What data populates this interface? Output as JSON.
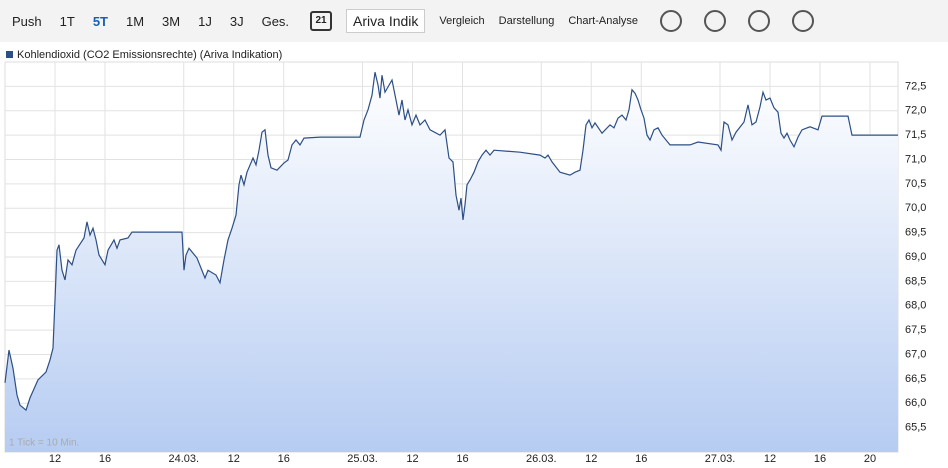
{
  "toolbar": {
    "ranges": [
      "Push",
      "1T",
      "5T",
      "1M",
      "3M",
      "1J",
      "3J",
      "Ges."
    ],
    "active": "5T",
    "calendar": "21",
    "source": "Ariva Indik",
    "menus": [
      "Vergleich",
      "Darstellung",
      "Chart-Analyse"
    ]
  },
  "chart_data": {
    "type": "line",
    "note": "1 Tick = 10 Min.",
    "x": [
      0,
      0.32,
      0.64,
      0.96,
      1.2,
      1.68,
      2.0,
      2.64,
      3.28,
      3.6,
      3.84,
      4.0,
      4.16,
      4.32,
      4.56,
      4.8,
      5.04,
      5.36,
      5.68,
      6.32,
      6.56,
      6.8,
      7.04,
      7.28,
      7.52,
      8.0,
      8.24,
      8.72,
      8.96,
      9.2,
      9.84,
      10.16,
      14.16,
      14.32,
      14.48,
      14.72,
      15.36,
      16.0,
      16.24,
      16.88,
      17.2,
      17.52,
      17.84,
      18.16,
      18.48,
      18.72,
      18.88,
      19.12,
      19.36,
      19.84,
      20.08,
      20.32,
      20.56,
      20.8,
      21.04,
      21.28,
      21.76,
      22.32,
      22.64,
      22.96,
      23.28,
      23.6,
      23.92,
      25.2,
      28.4,
      28.72,
      29.04,
      29.36,
      29.6,
      29.84,
      30.0,
      30.16,
      30.4,
      30.96,
      31.28,
      31.52,
      31.76,
      32.0,
      32.24,
      32.56,
      32.88,
      33.2,
      33.6,
      34.0,
      34.8,
      35.2,
      35.52,
      35.84,
      36.08,
      36.32,
      36.48,
      36.64,
      36.8,
      36.96,
      37.2,
      37.52,
      37.84,
      38.16,
      38.48,
      38.8,
      39.12,
      41.2,
      42.8,
      43.2,
      43.44,
      43.76,
      44.4,
      45.2,
      45.6,
      46.0,
      46.24,
      46.48,
      46.72,
      46.96,
      47.2,
      47.76,
      48.4,
      48.72,
      49.04,
      49.36,
      49.68,
      49.92,
      50.16,
      50.4,
      50.64,
      50.88,
      51.12,
      51.36,
      51.6,
      51.92,
      52.24,
      52.56,
      53.2,
      54.8,
      55.44,
      57.04,
      57.28,
      57.52,
      57.84,
      58.16,
      58.48,
      59.12,
      59.44,
      59.76,
      60.08,
      60.4,
      60.64,
      60.88,
      61.2,
      61.52,
      61.84,
      62.08,
      62.32,
      62.56,
      62.8,
      63.12,
      63.44,
      63.76,
      64.4,
      65.04,
      65.36,
      67.44,
      67.76,
      71.44
    ],
    "series": [
      {
        "name": "Kohlendioxid (CO2 Emissionsrechte) (Ariva Indikation)",
        "color": "#2c4f86",
        "values": [
          66.42,
          67.09,
          66.72,
          66.17,
          65.96,
          65.86,
          66.11,
          66.48,
          66.64,
          66.89,
          67.13,
          68.12,
          69.14,
          69.25,
          68.73,
          68.53,
          68.94,
          68.84,
          69.14,
          69.39,
          69.72,
          69.45,
          69.59,
          69.35,
          69.04,
          68.84,
          69.14,
          69.35,
          69.18,
          69.35,
          69.39,
          69.51,
          69.51,
          68.73,
          69.04,
          69.18,
          68.98,
          68.57,
          68.73,
          68.63,
          68.47,
          68.94,
          69.35,
          69.59,
          69.86,
          70.48,
          70.68,
          70.48,
          70.74,
          71.03,
          70.89,
          71.19,
          71.56,
          71.61,
          71.09,
          70.83,
          70.78,
          70.93,
          70.99,
          71.3,
          71.4,
          71.3,
          71.44,
          71.46,
          71.46,
          71.81,
          72.02,
          72.32,
          72.79,
          72.53,
          72.26,
          72.73,
          72.38,
          72.63,
          72.22,
          71.91,
          72.22,
          71.81,
          72.02,
          71.71,
          71.91,
          71.71,
          71.81,
          71.61,
          71.5,
          71.61,
          71.03,
          70.95,
          70.27,
          69.96,
          70.21,
          69.76,
          70.07,
          70.48,
          70.58,
          70.74,
          70.95,
          71.09,
          71.19,
          71.09,
          71.19,
          71.15,
          71.09,
          71.03,
          71.09,
          70.95,
          70.74,
          70.68,
          70.74,
          70.78,
          71.19,
          71.71,
          71.81,
          71.65,
          71.75,
          71.54,
          71.71,
          71.65,
          71.85,
          71.91,
          71.81,
          72.02,
          72.43,
          72.36,
          72.22,
          72.02,
          71.85,
          71.5,
          71.4,
          71.61,
          71.65,
          71.5,
          71.3,
          71.3,
          71.36,
          71.3,
          71.19,
          71.77,
          71.71,
          71.4,
          71.56,
          71.77,
          72.12,
          71.71,
          71.77,
          72.08,
          72.38,
          72.22,
          72.26,
          72.06,
          71.97,
          71.54,
          71.44,
          71.54,
          71.4,
          71.26,
          71.46,
          71.61,
          71.67,
          71.61,
          71.89,
          71.89,
          71.5,
          71.5
        ]
      }
    ],
    "xlim": [
      0,
      71.44
    ],
    "xticks": [
      {
        "value": 4,
        "label": "12"
      },
      {
        "value": 8,
        "label": "16"
      },
      {
        "value": 14.3,
        "label": "24.03."
      },
      {
        "value": 18.3,
        "label": "12"
      },
      {
        "value": 22.3,
        "label": "16"
      },
      {
        "value": 28.6,
        "label": "25.03."
      },
      {
        "value": 32.6,
        "label": "12"
      },
      {
        "value": 36.6,
        "label": "16"
      },
      {
        "value": 42.9,
        "label": "26.03."
      },
      {
        "value": 46.9,
        "label": "12"
      },
      {
        "value": 50.9,
        "label": "16"
      },
      {
        "value": 57.2,
        "label": "27.03."
      },
      {
        "value": 61.2,
        "label": "12"
      },
      {
        "value": 65.2,
        "label": "16"
      },
      {
        "value": 69.2,
        "label": "20"
      }
    ],
    "ylim": [
      65,
      73
    ],
    "yticks": [
      {
        "value": 65.5,
        "label": "65,5"
      },
      {
        "value": 66,
        "label": "66,0"
      },
      {
        "value": 66.5,
        "label": "66,5"
      },
      {
        "value": 67,
        "label": "67,0"
      },
      {
        "value": 67.5,
        "label": "67,5"
      },
      {
        "value": 68,
        "label": "68,0"
      },
      {
        "value": 68.5,
        "label": "68,5"
      },
      {
        "value": 69,
        "label": "69,0"
      },
      {
        "value": 69.5,
        "label": "69,5"
      },
      {
        "value": 70,
        "label": "70,0"
      },
      {
        "value": 70.5,
        "label": "70,5"
      },
      {
        "value": 71,
        "label": "71,0"
      },
      {
        "value": 71.5,
        "label": "71,5"
      },
      {
        "value": 72,
        "label": "72,0"
      },
      {
        "value": 72.5,
        "label": "72,5"
      }
    ],
    "grid": true
  }
}
